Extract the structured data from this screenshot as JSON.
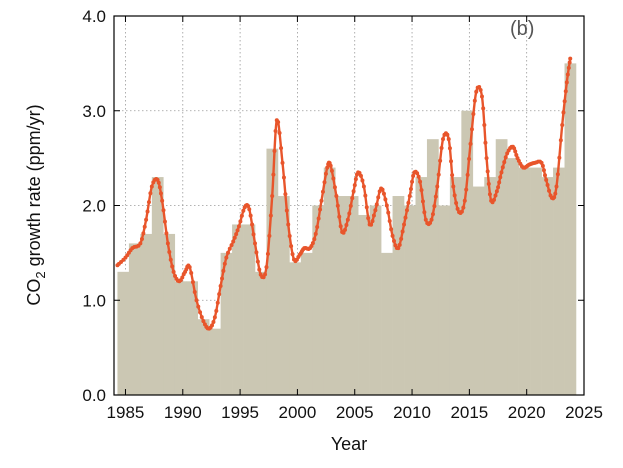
{
  "chart_data": {
    "type": "bar",
    "panel_label": "(b)",
    "xlabel": "Year",
    "ylabel": {
      "prefix": "CO",
      "subscript": "2",
      "suffix": " growth rate (ppm/yr)"
    },
    "xlim": [
      1984,
      2025
    ],
    "ylim": [
      0,
      4
    ],
    "grid": true,
    "x_ticks": [
      1985,
      1990,
      1995,
      2000,
      2005,
      2010,
      2015,
      2020,
      2025
    ],
    "x_tick_labels": [
      "1985",
      "1990",
      "1995",
      "2000",
      "2005",
      "2010",
      "2015",
      "2020",
      "2025"
    ],
    "y_ticks": [
      0,
      1,
      2,
      3,
      4
    ],
    "y_tick_labels": [
      "0.0",
      "1.0",
      "2.0",
      "3.0",
      "4.0"
    ],
    "colors": {
      "bars": "#cbc7b3",
      "line": "#e8552b",
      "grid": "#9a9a9a",
      "axis": "#000000"
    },
    "series": [
      {
        "kind": "bar",
        "years": [
          1984,
          1985,
          1986,
          1987,
          1988,
          1989,
          1990,
          1991,
          1992,
          1993,
          1994,
          1995,
          1996,
          1997,
          1998,
          1999,
          2000,
          2001,
          2002,
          2003,
          2004,
          2005,
          2006,
          2007,
          2008,
          2009,
          2010,
          2011,
          2012,
          2013,
          2014,
          2015,
          2016,
          2017,
          2018,
          2019,
          2020,
          2021,
          2022,
          2023
        ],
        "values": [
          1.3,
          1.6,
          1.7,
          2.3,
          1.7,
          1.2,
          1.2,
          0.8,
          0.7,
          1.5,
          1.8,
          1.8,
          1.3,
          2.6,
          2.1,
          1.4,
          1.5,
          2.0,
          2.4,
          2.1,
          2.1,
          1.9,
          2.0,
          1.5,
          2.1,
          2.0,
          2.3,
          2.7,
          2.0,
          2.3,
          3.0,
          2.2,
          2.3,
          2.7,
          2.5,
          2.4,
          2.4,
          2.3,
          2.4,
          3.5
        ]
      },
      {
        "kind": "line",
        "x": [
          1984.3,
          1985,
          1985.6,
          1986.3,
          1986.8,
          1987.3,
          1987.8,
          1988.2,
          1988.7,
          1989.2,
          1989.7,
          1990.2,
          1990.6,
          1991.2,
          1991.8,
          1992.3,
          1992.8,
          1993.3,
          1993.8,
          1994.4,
          1994.9,
          1995.4,
          1995.8,
          1996.3,
          1996.8,
          1997.3,
          1997.8,
          1998.2,
          1998.7,
          1999.2,
          1999.7,
          2000.2,
          2000.6,
          2001.1,
          2001.6,
          2002.1,
          2002.6,
          2002.9,
          2003.4,
          2003.9,
          2004.4,
          2004.9,
          2005.3,
          2005.8,
          2006.3,
          2006.8,
          2007.3,
          2007.8,
          2008.3,
          2008.8,
          2009.3,
          2009.8,
          2010.2,
          2010.7,
          2011.2,
          2011.7,
          2012.2,
          2012.7,
          2013.2,
          2013.6,
          2014.1,
          2014.6,
          2015.1,
          2015.6,
          2016.1,
          2016.5,
          2016.9,
          2017.4,
          2017.8,
          2018.3,
          2018.8,
          2019.2,
          2019.7,
          2020.2,
          2020.7,
          2021.3,
          2021.7,
          2022.2,
          2022.6,
          2023.1,
          2023.5,
          2023.8
        ],
        "y": [
          1.37,
          1.45,
          1.55,
          1.6,
          1.85,
          2.2,
          2.27,
          2.05,
          1.6,
          1.3,
          1.2,
          1.3,
          1.35,
          1.0,
          0.78,
          0.7,
          0.82,
          1.15,
          1.45,
          1.62,
          1.78,
          1.98,
          1.96,
          1.6,
          1.27,
          1.35,
          2.1,
          2.9,
          2.45,
          1.8,
          1.43,
          1.48,
          1.55,
          1.55,
          1.7,
          2.05,
          2.4,
          2.42,
          2.1,
          1.72,
          1.85,
          2.15,
          2.35,
          2.2,
          1.8,
          1.95,
          2.18,
          2.0,
          1.68,
          1.55,
          1.8,
          2.1,
          2.35,
          2.25,
          1.85,
          1.85,
          2.2,
          2.7,
          2.7,
          2.2,
          1.93,
          2.05,
          2.65,
          3.2,
          3.15,
          2.5,
          2.05,
          2.15,
          2.35,
          2.55,
          2.62,
          2.5,
          2.4,
          2.43,
          2.45,
          2.45,
          2.27,
          2.08,
          2.2,
          2.85,
          3.3,
          3.55
        ]
      }
    ]
  }
}
